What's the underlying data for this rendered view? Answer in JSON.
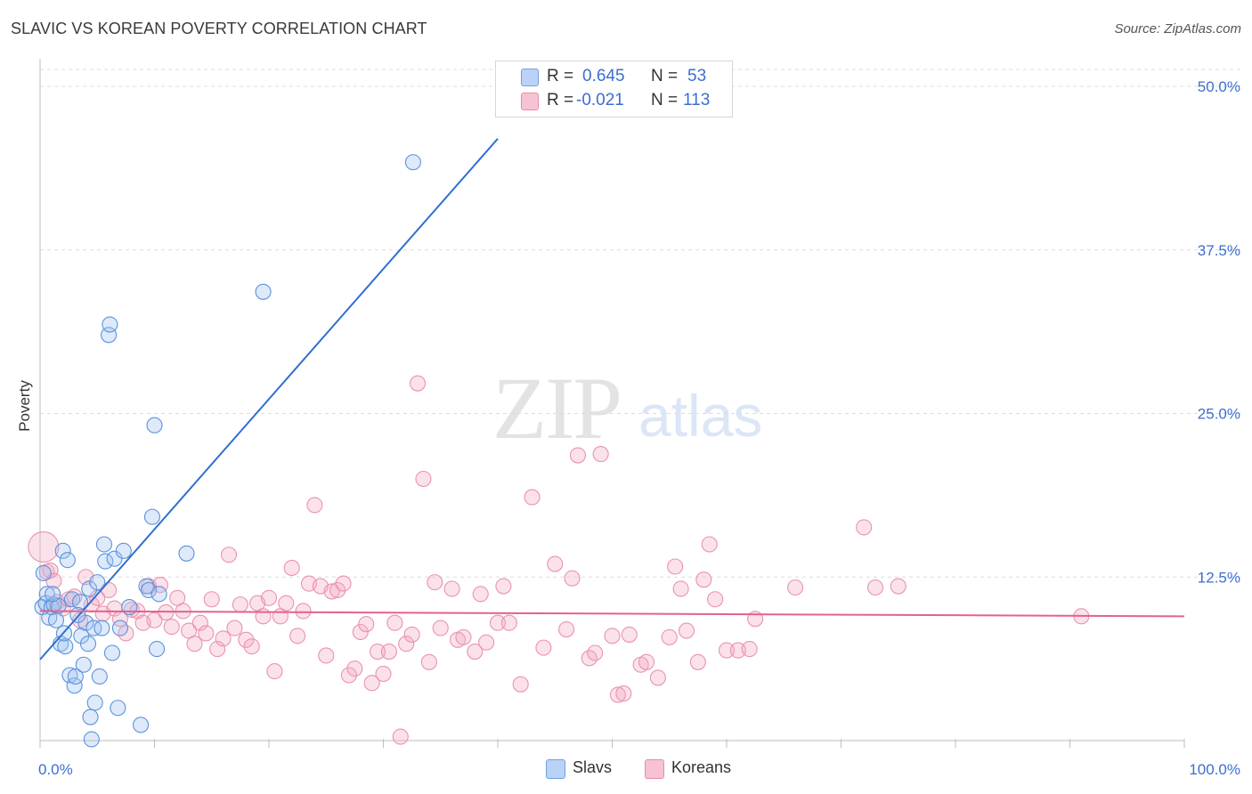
{
  "title": "SLAVIC VS KOREAN POVERTY CORRELATION CHART",
  "source": "Source: ZipAtlas.com",
  "watermark": {
    "zip": "ZIP",
    "atlas": "atlas"
  },
  "legend_stats": [
    {
      "r_label": "R =",
      "r_value": "0.645",
      "n_label": "N =",
      "n_value": "53",
      "color": "#6fa0e8",
      "fill": "#b9d2f5"
    },
    {
      "r_label": "R =",
      "r_value": "-0.021",
      "n_label": "N =",
      "n_value": "113",
      "color": "#e88aa8",
      "fill": "#f7c3d3"
    }
  ],
  "colors": {
    "slavs": "#4a86d8",
    "koreans": "#e0789c",
    "slavs_line": "#2f6fd1",
    "koreans_line": "#e2628f",
    "tick_text": "#3b6fd0"
  },
  "chart_data": {
    "type": "scatter",
    "title": "SLAVIC VS KOREAN POVERTY CORRELATION CHART",
    "xlabel": "",
    "ylabel": "Poverty",
    "xlim": [
      0,
      100
    ],
    "ylim": [
      0,
      50
    ],
    "x_tick_labels": [
      "0.0%",
      "100.0%"
    ],
    "y_ticks": [
      12.5,
      25.0,
      37.5,
      50.0
    ],
    "y_tick_labels": [
      "12.5%",
      "25.0%",
      "37.5%",
      "50.0%"
    ],
    "grid": true,
    "legend": "bottom-center",
    "series": [
      {
        "name": "Slavs",
        "r": 0.645,
        "n": 53,
        "trendline": {
          "x": [
            0,
            40
          ],
          "y": [
            6.2,
            46.0
          ]
        },
        "points": [
          [
            0.2,
            10.2
          ],
          [
            0.3,
            12.8
          ],
          [
            0.5,
            10.5
          ],
          [
            0.6,
            11.2
          ],
          [
            0.8,
            9.4
          ],
          [
            1.0,
            10.2
          ],
          [
            1.2,
            10.4
          ],
          [
            1.4,
            9.2
          ],
          [
            1.6,
            10.3
          ],
          [
            1.8,
            7.4
          ],
          [
            2.0,
            14.5
          ],
          [
            2.2,
            7.2
          ],
          [
            2.4,
            13.8
          ],
          [
            2.6,
            5.0
          ],
          [
            2.8,
            10.8
          ],
          [
            3.0,
            4.2
          ],
          [
            3.1,
            4.9
          ],
          [
            3.5,
            10.6
          ],
          [
            3.6,
            8.0
          ],
          [
            3.8,
            5.8
          ],
          [
            4.0,
            9.0
          ],
          [
            4.2,
            7.4
          ],
          [
            4.3,
            11.6
          ],
          [
            4.4,
            1.8
          ],
          [
            4.7,
            8.6
          ],
          [
            4.8,
            2.9
          ],
          [
            5.2,
            4.9
          ],
          [
            5.4,
            8.6
          ],
          [
            5.6,
            15.0
          ],
          [
            5.7,
            13.7
          ],
          [
            6.0,
            31.0
          ],
          [
            6.1,
            31.8
          ],
          [
            6.3,
            6.7
          ],
          [
            6.5,
            13.9
          ],
          [
            6.8,
            2.5
          ],
          [
            7.0,
            8.6
          ],
          [
            7.3,
            14.5
          ],
          [
            7.8,
            10.2
          ],
          [
            8.8,
            1.2
          ],
          [
            9.3,
            11.8
          ],
          [
            9.5,
            11.5
          ],
          [
            9.8,
            17.1
          ],
          [
            10.0,
            24.1
          ],
          [
            10.2,
            7.0
          ],
          [
            10.4,
            11.2
          ],
          [
            12.8,
            14.3
          ],
          [
            19.5,
            34.3
          ],
          [
            32.6,
            44.2
          ],
          [
            4.5,
            0.1
          ],
          [
            1.1,
            11.2
          ],
          [
            2.1,
            8.2
          ],
          [
            3.3,
            9.6
          ],
          [
            5.0,
            12.1
          ]
        ]
      },
      {
        "name": "Koreans",
        "r": -0.021,
        "n": 113,
        "trendline": {
          "x": [
            0,
            100
          ],
          "y": [
            9.9,
            9.5
          ]
        },
        "points": [
          [
            0.3,
            14.8
          ],
          [
            0.6,
            12.9
          ],
          [
            0.9,
            13.0
          ],
          [
            1.2,
            12.2
          ],
          [
            1.5,
            10.6
          ],
          [
            2.0,
            10.1
          ],
          [
            2.5,
            10.8
          ],
          [
            3.0,
            11.0
          ],
          [
            3.5,
            9.2
          ],
          [
            4.0,
            12.5
          ],
          [
            4.5,
            10.4
          ],
          [
            5.0,
            10.9
          ],
          [
            5.5,
            9.7
          ],
          [
            6.0,
            11.5
          ],
          [
            6.5,
            10.1
          ],
          [
            7.0,
            9.3
          ],
          [
            7.5,
            8.2
          ],
          [
            8.0,
            10.0
          ],
          [
            8.5,
            9.9
          ],
          [
            9.0,
            9.0
          ],
          [
            9.5,
            11.8
          ],
          [
            10.0,
            9.2
          ],
          [
            10.5,
            11.9
          ],
          [
            11.0,
            9.8
          ],
          [
            11.5,
            8.7
          ],
          [
            12.0,
            10.9
          ],
          [
            12.5,
            9.9
          ],
          [
            13.0,
            8.4
          ],
          [
            13.5,
            7.4
          ],
          [
            14.0,
            9.0
          ],
          [
            14.5,
            8.2
          ],
          [
            15.0,
            10.8
          ],
          [
            15.5,
            7.0
          ],
          [
            16.0,
            7.8
          ],
          [
            16.5,
            14.2
          ],
          [
            17.0,
            8.6
          ],
          [
            17.5,
            10.4
          ],
          [
            18.0,
            7.7
          ],
          [
            18.5,
            7.2
          ],
          [
            19.0,
            10.5
          ],
          [
            19.5,
            9.5
          ],
          [
            20.0,
            10.9
          ],
          [
            20.5,
            5.3
          ],
          [
            21.0,
            9.5
          ],
          [
            21.5,
            10.5
          ],
          [
            22.0,
            13.2
          ],
          [
            22.5,
            8.0
          ],
          [
            23.0,
            9.9
          ],
          [
            23.5,
            12.0
          ],
          [
            24.0,
            18.0
          ],
          [
            24.5,
            11.8
          ],
          [
            25.0,
            6.5
          ],
          [
            25.5,
            11.4
          ],
          [
            26.0,
            11.5
          ],
          [
            26.5,
            12.0
          ],
          [
            27.0,
            5.0
          ],
          [
            27.5,
            5.5
          ],
          [
            28.0,
            8.3
          ],
          [
            28.5,
            8.9
          ],
          [
            29.0,
            4.4
          ],
          [
            29.5,
            6.8
          ],
          [
            30.0,
            5.1
          ],
          [
            30.5,
            6.8
          ],
          [
            31.0,
            9.0
          ],
          [
            31.5,
            0.3
          ],
          [
            32.0,
            7.4
          ],
          [
            32.5,
            8.1
          ],
          [
            33.0,
            27.3
          ],
          [
            33.5,
            20.0
          ],
          [
            34.0,
            6.0
          ],
          [
            34.5,
            12.1
          ],
          [
            35.0,
            8.6
          ],
          [
            36.0,
            11.6
          ],
          [
            36.5,
            7.7
          ],
          [
            37.0,
            7.9
          ],
          [
            38.0,
            6.8
          ],
          [
            38.5,
            11.2
          ],
          [
            39.0,
            7.5
          ],
          [
            40.0,
            9.0
          ],
          [
            40.5,
            11.8
          ],
          [
            41.0,
            9.0
          ],
          [
            42.0,
            4.3
          ],
          [
            43.0,
            18.6
          ],
          [
            44.0,
            7.1
          ],
          [
            45.0,
            13.5
          ],
          [
            46.0,
            8.5
          ],
          [
            46.5,
            12.4
          ],
          [
            47.0,
            21.8
          ],
          [
            48.0,
            6.3
          ],
          [
            48.5,
            6.7
          ],
          [
            49.0,
            21.9
          ],
          [
            50.0,
            8.0
          ],
          [
            50.5,
            3.5
          ],
          [
            51.0,
            3.6
          ],
          [
            51.5,
            8.1
          ],
          [
            52.5,
            5.8
          ],
          [
            53.0,
            6.0
          ],
          [
            54.0,
            4.8
          ],
          [
            55.0,
            7.9
          ],
          [
            55.5,
            13.3
          ],
          [
            56.0,
            11.6
          ],
          [
            56.5,
            8.4
          ],
          [
            57.5,
            6.0
          ],
          [
            58.0,
            12.3
          ],
          [
            58.5,
            15.0
          ],
          [
            59.0,
            10.8
          ],
          [
            60.0,
            6.9
          ],
          [
            61.0,
            6.9
          ],
          [
            62.0,
            7.0
          ],
          [
            62.5,
            9.3
          ],
          [
            66.0,
            11.7
          ],
          [
            72.0,
            16.3
          ],
          [
            73.0,
            11.7
          ],
          [
            75.0,
            11.8
          ],
          [
            91.0,
            9.5
          ]
        ]
      }
    ]
  }
}
